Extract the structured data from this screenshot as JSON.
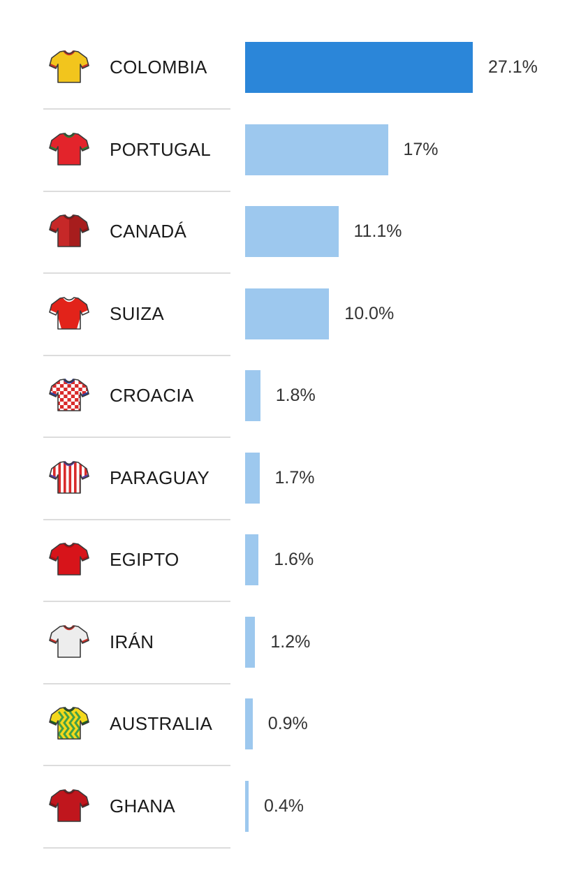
{
  "chart_data": {
    "type": "bar",
    "orientation": "horizontal",
    "categories": [
      "COLOMBIA",
      "PORTUGAL",
      "CANADÁ",
      "SUIZA",
      "CROACIA",
      "PARAGUAY",
      "EGIPTO",
      "IRÁN",
      "AUSTRALIA",
      "GHANA"
    ],
    "values": [
      27.1,
      17,
      11.1,
      10.0,
      1.8,
      1.7,
      1.6,
      1.2,
      0.9,
      0.4
    ],
    "value_labels": [
      "27.1%",
      "17%",
      "11.1%",
      "10.0%",
      "1.8%",
      "1.7%",
      "1.6%",
      "1.2%",
      "0.9%",
      "0.4%"
    ],
    "highlight_index": 0,
    "colors": {
      "highlight": "#2B86D9",
      "default": "#9DC8EE"
    },
    "jerseys": [
      {
        "icon": "jersey-colombia-icon",
        "body": "#F2C51D",
        "trim": "#C7322B",
        "pattern": "plain"
      },
      {
        "icon": "jersey-portugal-icon",
        "body": "#E3242B",
        "trim": "#2E7D32",
        "pattern": "plain"
      },
      {
        "icon": "jersey-canada-icon",
        "body": "#C62828",
        "trim": "#8E1414",
        "pattern": "split"
      },
      {
        "icon": "jersey-suiza-icon",
        "body": "#E2231A",
        "trim": "#FFFFFF",
        "pattern": "sidestripe"
      },
      {
        "icon": "jersey-croacia-icon",
        "body": "#FFFFFF",
        "trim": "#2D3E9B",
        "pattern": "checker",
        "accent": "#D92B2B"
      },
      {
        "icon": "jersey-paraguay-icon",
        "body": "#FFFFFF",
        "trim": "#5B3FA0",
        "pattern": "vstripes",
        "accent": "#D92B2B"
      },
      {
        "icon": "jersey-egipto-icon",
        "body": "#D7141A",
        "trim": "#B00E12",
        "pattern": "plain"
      },
      {
        "icon": "jersey-iran-icon",
        "body": "#EDEDED",
        "trim": "#C7322B",
        "pattern": "plain"
      },
      {
        "icon": "jersey-australia-icon",
        "body": "#F4D81C",
        "trim": "#1B5E20",
        "pattern": "zigzag",
        "accent": "#43A047"
      },
      {
        "icon": "jersey-ghana-icon",
        "body": "#C0161D",
        "trim": "#8E0E12",
        "pattern": "plain"
      }
    ]
  }
}
